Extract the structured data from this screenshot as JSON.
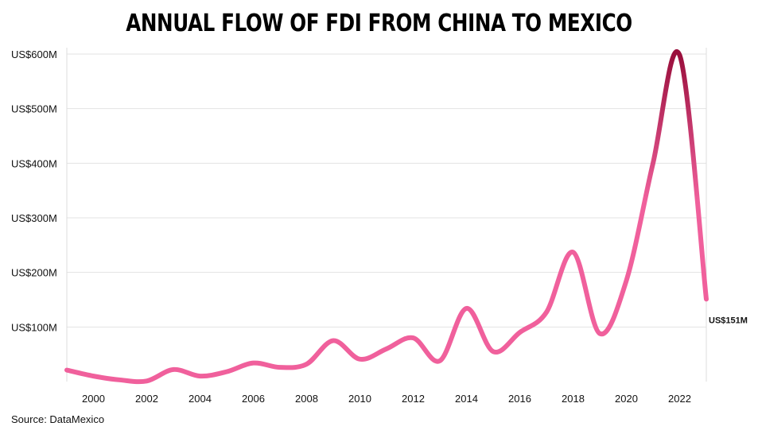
{
  "chart_data": {
    "type": "line",
    "title": "ANNUAL FLOW OF FDI FROM CHINA TO MEXICO",
    "source": "Source: DataMexico",
    "x": [
      1999,
      2000,
      2001,
      2002,
      2003,
      2004,
      2005,
      2006,
      2007,
      2008,
      2009,
      2010,
      2011,
      2012,
      2013,
      2014,
      2015,
      2016,
      2017,
      2018,
      2019,
      2020,
      2021,
      2022,
      2023
    ],
    "series": [
      {
        "values": [
          21,
          10,
          3,
          1,
          22,
          10,
          18,
          34,
          26,
          32,
          75,
          41,
          60,
          80,
          38,
          134,
          55,
          90,
          127,
          237,
          88,
          185,
          400,
          598,
          151
        ]
      }
    ],
    "xlabel": "",
    "ylabel": "",
    "xticks": [
      "2000",
      "2002",
      "2004",
      "2006",
      "2008",
      "2010",
      "2012",
      "2014",
      "2016",
      "2018",
      "2020",
      "2022"
    ],
    "yticks": [
      "US$100M",
      "US$200M",
      "US$300M",
      "US$400M",
      "US$500M",
      "US$600M"
    ],
    "ylim": [
      0,
      600
    ],
    "xlim": [
      1999,
      2023
    ],
    "grid": true,
    "end_label": "US$151M",
    "colors": {
      "low": "#f0609c",
      "high": "#9a0f3c"
    }
  }
}
